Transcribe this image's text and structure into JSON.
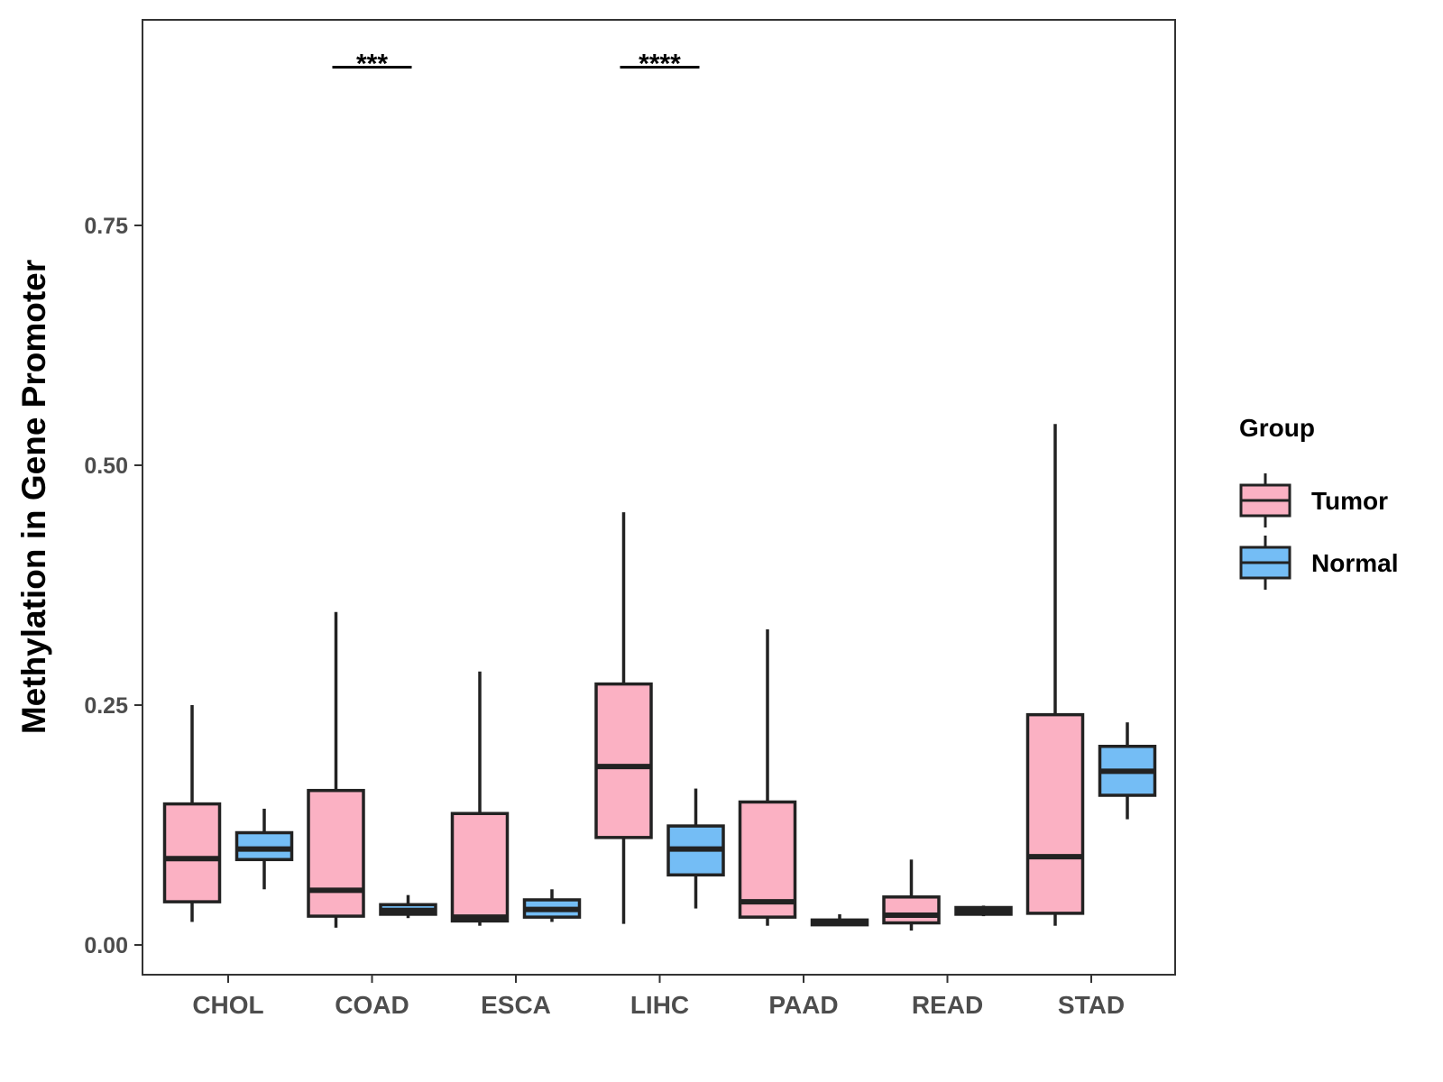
{
  "chart_data": {
    "type": "boxplot",
    "title": "",
    "xlabel": "",
    "ylabel": "Methylation in Gene Promoter",
    "ylim": [
      -0.03,
      0.965
    ],
    "yticks": [
      {
        "value": 0.0,
        "label": "0.00"
      },
      {
        "value": 0.25,
        "label": "0.25"
      },
      {
        "value": 0.5,
        "label": "0.50"
      },
      {
        "value": 0.75,
        "label": "0.75"
      }
    ],
    "categories": [
      "CHOL",
      "COAD",
      "ESCA",
      "LIHC",
      "PAAD",
      "READ",
      "STAD"
    ],
    "grid": false,
    "legend": {
      "title": "Group",
      "position": "right",
      "entries": [
        {
          "name": "Tumor",
          "color": "#FBB1C3"
        },
        {
          "name": "Normal",
          "color": "#74BDF5"
        }
      ]
    },
    "series": [
      {
        "name": "Tumor",
        "color": "#FBB1C3",
        "boxes": [
          {
            "min": 0.024,
            "q1": 0.045,
            "median": 0.09,
            "q3": 0.147,
            "max": 0.25
          },
          {
            "min": 0.018,
            "q1": 0.03,
            "median": 0.057,
            "q3": 0.161,
            "max": 0.347
          },
          {
            "min": 0.02,
            "q1": 0.025,
            "median": 0.029,
            "q3": 0.137,
            "max": 0.285
          },
          {
            "min": 0.022,
            "q1": 0.112,
            "median": 0.186,
            "q3": 0.272,
            "max": 0.451
          },
          {
            "min": 0.02,
            "q1": 0.029,
            "median": 0.045,
            "q3": 0.149,
            "max": 0.329
          },
          {
            "min": 0.015,
            "q1": 0.023,
            "median": 0.031,
            "q3": 0.05,
            "max": 0.089
          },
          {
            "min": 0.02,
            "q1": 0.033,
            "median": 0.092,
            "q3": 0.24,
            "max": 0.543
          }
        ]
      },
      {
        "name": "Normal",
        "color": "#74BDF5",
        "boxes": [
          {
            "min": 0.058,
            "q1": 0.089,
            "median": 0.1,
            "q3": 0.117,
            "max": 0.142
          },
          {
            "min": 0.028,
            "q1": 0.032,
            "median": 0.036,
            "q3": 0.042,
            "max": 0.052
          },
          {
            "min": 0.024,
            "q1": 0.029,
            "median": 0.037,
            "q3": 0.047,
            "max": 0.058
          },
          {
            "min": 0.038,
            "q1": 0.073,
            "median": 0.1,
            "q3": 0.124,
            "max": 0.163
          },
          {
            "min": 0.02,
            "q1": 0.021,
            "median": 0.023,
            "q3": 0.026,
            "max": 0.032
          },
          {
            "min": 0.03,
            "q1": 0.032,
            "median": 0.035,
            "q3": 0.039,
            "max": 0.041
          },
          {
            "min": 0.131,
            "q1": 0.156,
            "median": 0.181,
            "q3": 0.207,
            "max": 0.232
          }
        ]
      }
    ],
    "annotations": [
      {
        "category": "COAD",
        "label": "***",
        "y": 0.915
      },
      {
        "category": "LIHC",
        "label": "****",
        "y": 0.915
      }
    ]
  }
}
